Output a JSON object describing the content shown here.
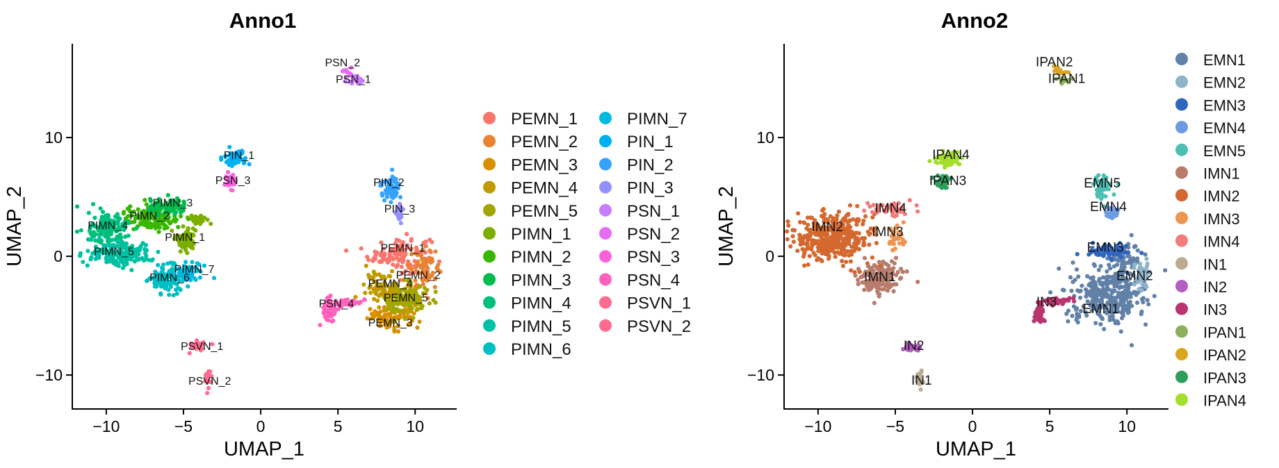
{
  "chart_data": [
    {
      "type": "scatter",
      "title": "Anno1",
      "xlabel": "UMAP_1",
      "ylabel": "UMAP_2",
      "xlim": [
        -12.2,
        12.6
      ],
      "ylim": [
        -12.8,
        17.9
      ],
      "xticks": [
        -10,
        -5,
        0,
        5,
        10
      ],
      "xtick_labels": [
        "−10",
        "−5",
        "0",
        "5",
        "10"
      ],
      "yticks": [
        -10,
        0,
        10
      ],
      "ytick_labels": [
        "−10",
        "0",
        "10"
      ],
      "grid": false,
      "legend_position": "right",
      "legend_columns": 2,
      "series": [
        {
          "name": "PEMN_1",
          "color": "#F8766D",
          "label_x": 9.2,
          "label_y": 0.4,
          "clusters": [
            [
              9.0,
              0.2,
              1.8,
              1.4,
              120
            ]
          ]
        },
        {
          "name": "PEMN_2",
          "color": "#EA8331",
          "label_x": 10.2,
          "label_y": -1.9,
          "clusters": [
            [
              10.6,
              -1.0,
              0.9,
              1.5,
              60
            ]
          ]
        },
        {
          "name": "PEMN_3",
          "color": "#D89000",
          "label_x": 8.4,
          "label_y": -5.9,
          "clusters": [
            [
              8.6,
              -5.2,
              1.5,
              0.9,
              90
            ]
          ]
        },
        {
          "name": "PEMN_4",
          "color": "#C09B00",
          "label_x": 8.4,
          "label_y": -2.6,
          "clusters": [
            [
              8.2,
              -2.6,
              1.3,
              1.2,
              100
            ]
          ]
        },
        {
          "name": "PEMN_5",
          "color": "#A3A500",
          "label_x": 9.4,
          "label_y": -3.8,
          "clusters": [
            [
              9.4,
              -3.8,
              1.3,
              1.3,
              110
            ]
          ]
        },
        {
          "name": "PIMN_1",
          "color": "#7CAE00",
          "label_x": -4.9,
          "label_y": 1.3,
          "clusters": [
            [
              -4.8,
              1.5,
              0.6,
              0.9,
              70
            ],
            [
              -4.2,
              3.2,
              0.6,
              0.4,
              25
            ]
          ]
        },
        {
          "name": "PIMN_2",
          "color": "#39B600",
          "label_x": -7.2,
          "label_y": 3.1,
          "clusters": [
            [
              -7.0,
              3.2,
              1.6,
              1.0,
              140
            ]
          ]
        },
        {
          "name": "PIMN_3",
          "color": "#00BB4E",
          "label_x": -5.7,
          "label_y": 4.2,
          "clusters": [
            [
              -6.0,
              4.1,
              1.2,
              0.6,
              80
            ]
          ]
        },
        {
          "name": "PIMN_4",
          "color": "#00BF7D",
          "label_x": -9.9,
          "label_y": 2.3,
          "clusters": [
            [
              -9.8,
              2.3,
              1.2,
              1.3,
              140
            ]
          ]
        },
        {
          "name": "PIMN_5",
          "color": "#00C1A3",
          "label_x": -9.5,
          "label_y": 0.1,
          "clusters": [
            [
              -9.2,
              0.2,
              1.9,
              0.9,
              170
            ]
          ]
        },
        {
          "name": "PIMN_6",
          "color": "#00BFC4",
          "label_x": -5.9,
          "label_y": -2.1,
          "clusters": [
            [
              -6.0,
              -1.9,
              1.1,
              1.1,
              120
            ]
          ]
        },
        {
          "name": "PIMN_7",
          "color": "#00BAE0",
          "label_x": -4.3,
          "label_y": -1.4,
          "clusters": [
            [
              -4.6,
              -1.3,
              0.8,
              0.7,
              55
            ]
          ]
        },
        {
          "name": "PIN_1",
          "color": "#00B0F6",
          "label_x": -1.4,
          "label_y": 8.2,
          "clusters": [
            [
              -1.6,
              8.3,
              0.7,
              0.5,
              60
            ]
          ]
        },
        {
          "name": "PIN_2",
          "color": "#35A2FF",
          "label_x": 8.3,
          "label_y": 5.9,
          "clusters": [
            [
              8.4,
              5.8,
              0.5,
              0.9,
              60
            ]
          ]
        },
        {
          "name": "PIN_3",
          "color": "#9590FF",
          "label_x": 9.0,
          "label_y": 3.7,
          "clusters": [
            [
              9.0,
              3.6,
              0.3,
              0.6,
              25
            ]
          ]
        },
        {
          "name": "PSN_1",
          "color": "#C77CFF",
          "label_x": 6.0,
          "label_y": 14.6,
          "clusters": [
            [
              6.2,
              14.9,
              0.5,
              0.4,
              20
            ]
          ]
        },
        {
          "name": "PSN_2",
          "color": "#E76BF3",
          "label_x": 5.3,
          "label_y": 16.0,
          "clusters": [
            [
              5.6,
              15.6,
              0.3,
              0.3,
              10
            ]
          ]
        },
        {
          "name": "PSN_3",
          "color": "#FA62DB",
          "label_x": -1.8,
          "label_y": 6.1,
          "clusters": [
            [
              -2.0,
              6.3,
              0.4,
              0.6,
              30
            ]
          ]
        },
        {
          "name": "PSN_4",
          "color": "#FF62BC",
          "label_x": 4.9,
          "label_y": -4.3,
          "clusters": [
            [
              4.5,
              -4.5,
              0.4,
              1.0,
              55
            ],
            [
              5.6,
              -3.9,
              1.0,
              0.3,
              45
            ]
          ]
        },
        {
          "name": "PSVN_1",
          "color": "#FF6C91",
          "label_x": -3.8,
          "label_y": -7.9,
          "clusters": [
            [
              -4.0,
              -7.6,
              0.6,
              0.4,
              25
            ]
          ]
        },
        {
          "name": "PSVN_2",
          "color": "#FF6C91",
          "label_x": -3.3,
          "label_y": -10.8,
          "clusters": [
            [
              -3.4,
              -10.3,
              0.2,
              0.8,
              20
            ]
          ]
        }
      ]
    },
    {
      "type": "scatter",
      "title": "Anno2",
      "xlabel": "UMAP_1",
      "ylabel": "UMAP_2",
      "xlim": [
        -12.2,
        12.6
      ],
      "ylim": [
        -12.8,
        17.9
      ],
      "xticks": [
        -10,
        -5,
        0,
        5,
        10
      ],
      "xtick_labels": [
        "−10",
        "−5",
        "0",
        "5",
        "10"
      ],
      "yticks": [
        -10,
        0,
        10
      ],
      "ytick_labels": [
        "−10",
        "0",
        "10"
      ],
      "grid": false,
      "legend_position": "right",
      "legend_columns": 1,
      "series": [
        {
          "name": "EMN1",
          "color": "#6181A8",
          "label_x": 8.3,
          "label_y": -4.8,
          "clusters": [
            [
              8.8,
              -3.2,
              2.2,
              2.2,
              330
            ],
            [
              10.0,
              -0.2,
              0.9,
              1.1,
              60
            ]
          ]
        },
        {
          "name": "EMN2",
          "color": "#8DB4CB",
          "label_x": 10.5,
          "label_y": -2.0,
          "clusters": [
            [
              10.9,
              -1.6,
              0.5,
              1.0,
              40
            ]
          ]
        },
        {
          "name": "EMN3",
          "color": "#3066BE",
          "label_x": 8.6,
          "label_y": 0.4,
          "clusters": [
            [
              8.8,
              0.4,
              1.3,
              0.6,
              70
            ]
          ]
        },
        {
          "name": "EMN4",
          "color": "#6C9BE3",
          "label_x": 8.8,
          "label_y": 3.8,
          "clusters": [
            [
              9.0,
              3.7,
              0.4,
              0.5,
              25
            ]
          ]
        },
        {
          "name": "EMN5",
          "color": "#4CBFB2",
          "label_x": 8.4,
          "label_y": 5.8,
          "clusters": [
            [
              8.4,
              5.8,
              0.5,
              0.8,
              55
            ]
          ]
        },
        {
          "name": "IMN1",
          "color": "#B77C6C",
          "label_x": -6.0,
          "label_y": -2.1,
          "clusters": [
            [
              -6.0,
              -1.8,
              1.2,
              1.2,
              150
            ]
          ]
        },
        {
          "name": "IMN2",
          "color": "#D4682F",
          "label_x": -9.4,
          "label_y": 2.1,
          "clusters": [
            [
              -9.0,
              1.6,
              2.2,
              1.8,
              380
            ]
          ]
        },
        {
          "name": "IMN3",
          "color": "#EE9553",
          "label_x": -5.5,
          "label_y": 1.7,
          "clusters": [
            [
              -5.0,
              1.6,
              0.5,
              1.0,
              35
            ]
          ]
        },
        {
          "name": "IMN4",
          "color": "#F27C7C",
          "label_x": -5.3,
          "label_y": 3.7,
          "clusters": [
            [
              -5.4,
              4.0,
              1.2,
              0.5,
              50
            ]
          ]
        },
        {
          "name": "IN1",
          "color": "#BBAC91",
          "label_x": -3.3,
          "label_y": -10.8,
          "clusters": [
            [
              -3.4,
              -10.3,
              0.2,
              0.7,
              20
            ]
          ]
        },
        {
          "name": "IN2",
          "color": "#B25DC0",
          "label_x": -3.8,
          "label_y": -7.9,
          "clusters": [
            [
              -3.9,
              -7.7,
              0.6,
              0.4,
              25
            ]
          ]
        },
        {
          "name": "IN3",
          "color": "#B8356D",
          "label_x": 4.8,
          "label_y": -4.2,
          "clusters": [
            [
              4.3,
              -4.8,
              0.3,
              0.9,
              45
            ],
            [
              5.5,
              -3.8,
              1.0,
              0.3,
              40
            ]
          ]
        },
        {
          "name": "IPAN1",
          "color": "#8CB05C",
          "label_x": 6.1,
          "label_y": 14.6,
          "clusters": [
            [
              6.0,
              14.8,
              0.4,
              0.3,
              12
            ]
          ]
        },
        {
          "name": "IPAN2",
          "color": "#DBA521",
          "label_x": 5.3,
          "label_y": 16.0,
          "clusters": [
            [
              5.6,
              15.6,
              0.4,
              0.4,
              15
            ]
          ]
        },
        {
          "name": "IPAN3",
          "color": "#2C9F5B",
          "label_x": -1.6,
          "label_y": 6.0,
          "clusters": [
            [
              -2.0,
              6.3,
              0.5,
              0.6,
              30
            ]
          ]
        },
        {
          "name": "IPAN4",
          "color": "#A3DF2B",
          "label_x": -1.4,
          "label_y": 8.2,
          "clusters": [
            [
              -1.6,
              8.2,
              0.8,
              0.6,
              60
            ]
          ]
        }
      ]
    }
  ]
}
